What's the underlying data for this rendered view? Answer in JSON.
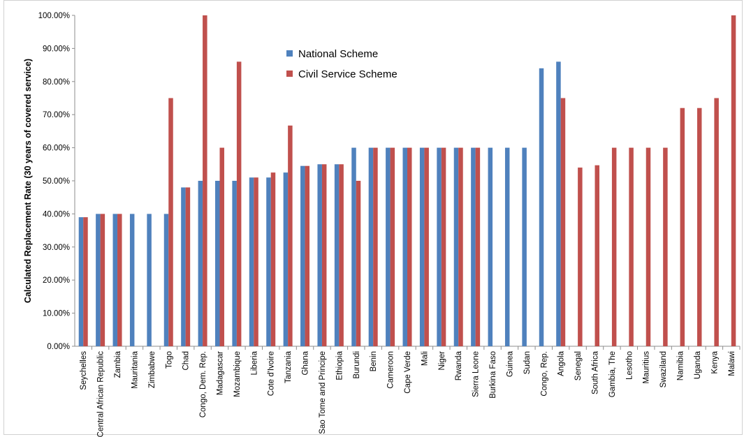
{
  "chart_data": {
    "type": "bar",
    "ylabel": "Calculated Replacement Rate (30 years of covered service)",
    "xlabel": "",
    "ylim": [
      0,
      100
    ],
    "y_ticks": [
      "0.00%",
      "10.00%",
      "20.00%",
      "30.00%",
      "40.00%",
      "50.00%",
      "60.00%",
      "70.00%",
      "80.00%",
      "90.00%",
      "100.00%"
    ],
    "legend_position": "top-center",
    "grid": false,
    "categories": [
      "Seychelles",
      "Central African Republic",
      "Zambia",
      "Mauritania",
      "Zimbabwe",
      "Togo",
      "Chad",
      "Congo, Dem. Rep.",
      "Madagascar",
      "Mozambique",
      "Liberia",
      "Cote d'Ivoire",
      "Tanzania",
      "Ghana",
      "Sao Tome and Principe",
      "Ethiopia",
      "Burundi",
      "Benin",
      "Cameroon",
      "Cape Verde",
      "Mali",
      "Niger",
      "Rwanda",
      "Sierra Leone",
      "Burkina Faso",
      "Guinea",
      "Sudan",
      "Congo, Rep.",
      "Angola",
      "Senegal",
      "South Africa",
      "Gambia, The",
      "Lesotho",
      "Mauritius",
      "Swaziland",
      "Namibia",
      "Uganda",
      "Kenya",
      "Malawi"
    ],
    "series": [
      {
        "name": "National Scheme",
        "color": "#4F81BD",
        "values": [
          39,
          40,
          40,
          40,
          40,
          40,
          48,
          50,
          50,
          50,
          51,
          51,
          52.5,
          54.5,
          55,
          55,
          60,
          60,
          60,
          60,
          60,
          60,
          60,
          60,
          60,
          60,
          60,
          84,
          86,
          null,
          null,
          null,
          null,
          null,
          null,
          null,
          null,
          null,
          null
        ]
      },
      {
        "name": "Civil Service Scheme",
        "color": "#C0504D",
        "values": [
          39,
          40,
          40,
          null,
          null,
          75,
          48,
          100,
          60,
          86,
          51,
          52.5,
          66.7,
          54.5,
          55,
          55,
          50,
          60,
          60,
          60,
          60,
          60,
          60,
          60,
          null,
          null,
          null,
          null,
          75,
          54,
          54.7,
          60,
          60,
          60,
          60,
          72,
          72,
          75,
          100
        ]
      }
    ]
  }
}
